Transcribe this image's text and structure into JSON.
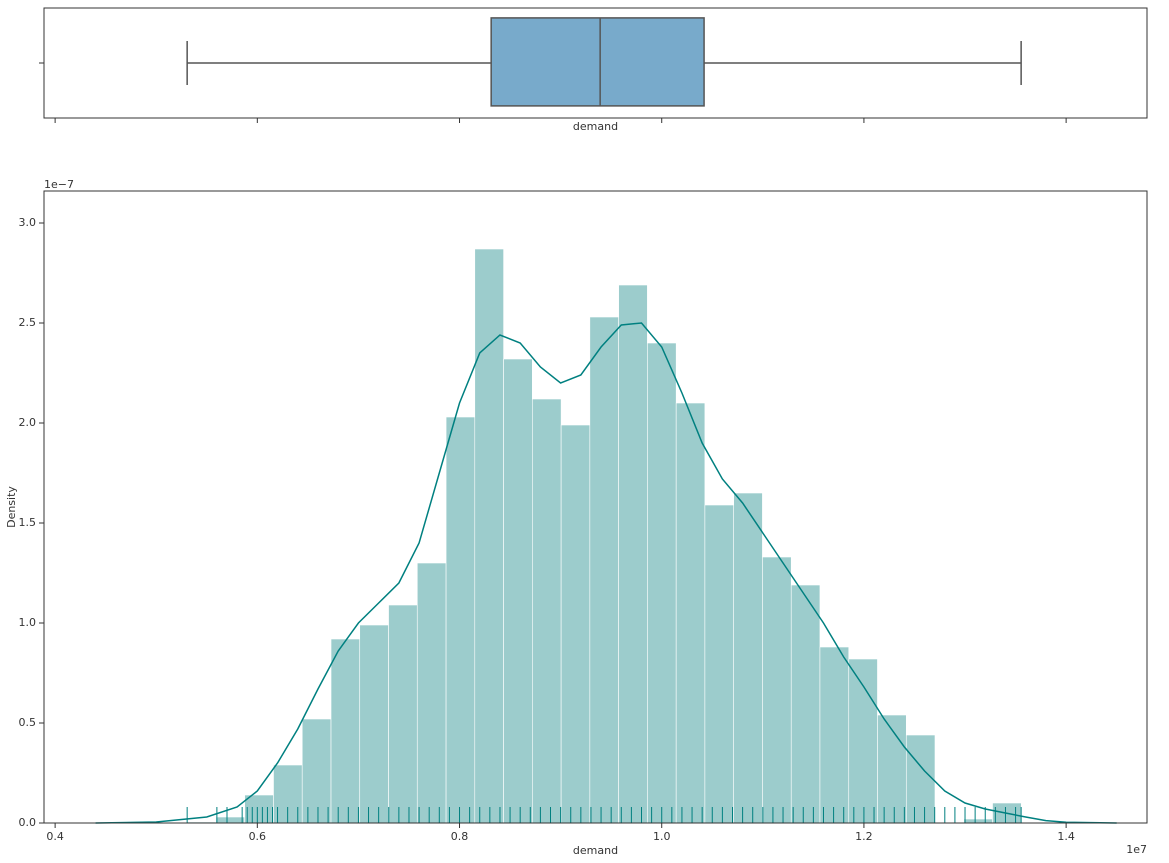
{
  "chart_data": [
    {
      "type": "box",
      "xlabel": "demand",
      "whislo": 0.5306,
      "q1": 0.8313,
      "med": 0.9391,
      "q3": 1.0419,
      "whishi": 1.3555,
      "color": "#78aacb",
      "xlim": [
        0.389,
        1.48
      ],
      "xticks": [
        0.4,
        0.6,
        0.8,
        1.0,
        1.2,
        1.4
      ]
    },
    {
      "type": "histogram",
      "xlabel": "demand",
      "ylabel": "Density",
      "x_offset_label": "1e7",
      "y_offset_label": "1e−7",
      "bins": [
        0.5306,
        0.5591,
        0.5875,
        0.616,
        0.6444,
        0.6729,
        0.7013,
        0.7298,
        0.7582,
        0.7867,
        0.8151,
        0.8436,
        0.872,
        0.9005,
        0.9289,
        0.9574,
        0.9858,
        1.0143,
        1.0427,
        1.0712,
        1.0996,
        1.1281,
        1.1565,
        1.185,
        1.2134,
        1.2419,
        1.2703,
        1.2988,
        1.3272,
        1.3557
      ],
      "values": [
        0.005,
        0.03,
        0.14,
        0.29,
        0.52,
        0.92,
        0.99,
        1.09,
        1.3,
        2.03,
        2.87,
        2.32,
        2.12,
        1.99,
        2.53,
        2.69,
        2.4,
        2.1,
        1.59,
        1.65,
        1.33,
        1.19,
        0.88,
        0.82,
        0.54,
        0.44,
        0.0,
        0.02,
        0.1
      ],
      "color": "#9ccccc",
      "kde": {
        "color": "#008080",
        "x": [
          0.44,
          0.5,
          0.55,
          0.58,
          0.6,
          0.62,
          0.64,
          0.66,
          0.68,
          0.7,
          0.72,
          0.74,
          0.76,
          0.78,
          0.8,
          0.82,
          0.84,
          0.86,
          0.88,
          0.9,
          0.92,
          0.94,
          0.96,
          0.98,
          1.0,
          1.02,
          1.04,
          1.06,
          1.08,
          1.1,
          1.12,
          1.14,
          1.16,
          1.18,
          1.2,
          1.22,
          1.24,
          1.26,
          1.28,
          1.3,
          1.32,
          1.34,
          1.36,
          1.38,
          1.4,
          1.45
        ],
        "y": [
          0.0,
          0.005,
          0.03,
          0.08,
          0.16,
          0.3,
          0.47,
          0.67,
          0.86,
          1.0,
          1.1,
          1.2,
          1.4,
          1.75,
          2.1,
          2.35,
          2.44,
          2.4,
          2.28,
          2.2,
          2.24,
          2.38,
          2.49,
          2.5,
          2.38,
          2.15,
          1.9,
          1.72,
          1.6,
          1.45,
          1.3,
          1.15,
          1.0,
          0.83,
          0.68,
          0.52,
          0.38,
          0.26,
          0.16,
          0.1,
          0.07,
          0.05,
          0.03,
          0.012,
          0.004,
          0.0
        ]
      },
      "rug": {
        "color": "#008080",
        "values": [
          0.5306,
          0.56,
          0.57,
          0.585,
          0.59,
          0.595,
          0.6,
          0.605,
          0.61,
          0.615,
          0.62,
          0.63,
          0.64,
          0.65,
          0.66,
          0.67,
          0.68,
          0.69,
          0.7,
          0.71,
          0.72,
          0.73,
          0.74,
          0.75,
          0.76,
          0.77,
          0.78,
          0.79,
          0.8,
          0.81,
          0.82,
          0.83,
          0.84,
          0.85,
          0.86,
          0.87,
          0.88,
          0.89,
          0.9,
          0.91,
          0.92,
          0.93,
          0.94,
          0.95,
          0.96,
          0.97,
          0.98,
          0.99,
          1.0,
          1.01,
          1.02,
          1.03,
          1.04,
          1.05,
          1.06,
          1.07,
          1.08,
          1.09,
          1.1,
          1.11,
          1.12,
          1.13,
          1.14,
          1.15,
          1.16,
          1.17,
          1.18,
          1.19,
          1.2,
          1.21,
          1.22,
          1.23,
          1.24,
          1.25,
          1.26,
          1.27,
          1.28,
          1.29,
          1.3,
          1.31,
          1.32,
          1.33,
          1.34,
          1.35,
          1.3555
        ]
      },
      "xlim": [
        0.389,
        1.48
      ],
      "ylim": [
        0,
        3.16
      ],
      "xticks": [
        0.4,
        0.6,
        0.8,
        {
          "value": 1.0,
          "label": "1.0"
        },
        1.2,
        1.4
      ],
      "yticks": [
        {
          "value": 0,
          "label": "0.0"
        },
        0.5,
        {
          "value": 1.0,
          "label": "1.0"
        },
        1.5,
        {
          "value": 2.0,
          "label": "2.0"
        },
        2.5,
        {
          "value": 3.0,
          "label": "3.0"
        }
      ]
    }
  ]
}
